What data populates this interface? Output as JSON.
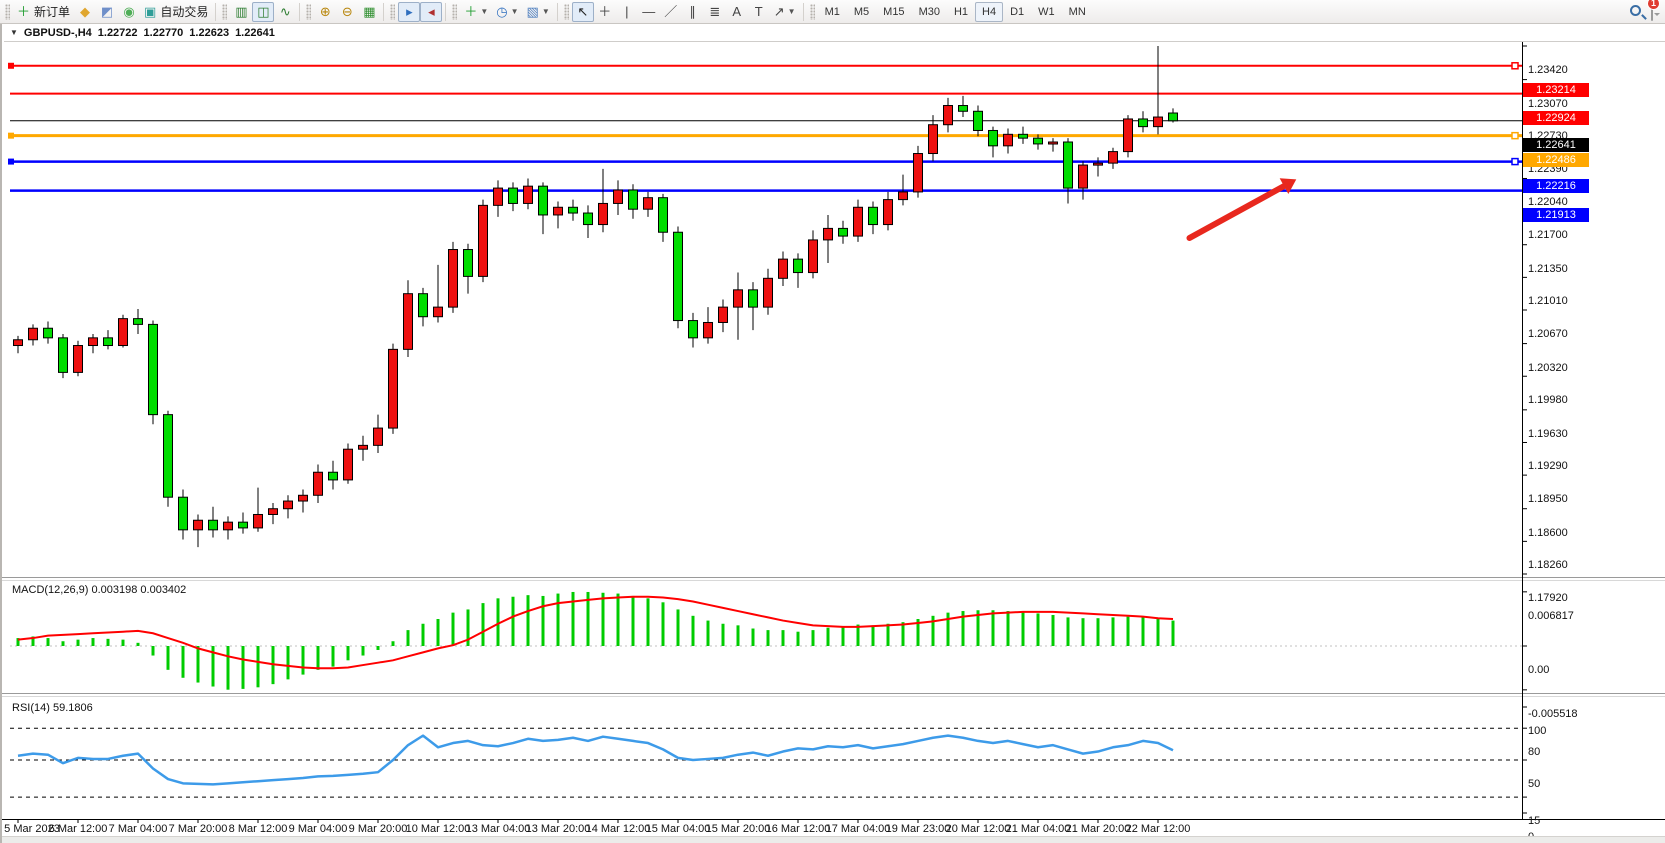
{
  "colors": {
    "bull": "#ee1111",
    "bear": "#00dd00",
    "candle_border": "#000000",
    "wick": "#000000",
    "line_red": "#ff0000",
    "line_orange": "#ffa800",
    "line_blue": "#0000ff",
    "line_black": "#000000",
    "macd_hist": "#00cc00",
    "macd_signal": "#ff0000",
    "rsi_line": "#3d9be9",
    "badge_black": "#000000",
    "arrow": "#e8281e",
    "axis_border": "#000000"
  },
  "toolbar": {
    "groups": [
      {
        "items": [
          {
            "name": "new-order-button",
            "icon": "new-order-icon",
            "glyph": "＋",
            "color": "#1f9d2f",
            "label": "新订单"
          },
          {
            "name": "open-account-button",
            "icon": "hat-icon",
            "glyph": "◆",
            "color": "#e0a62e"
          },
          {
            "name": "profile-button",
            "icon": "profile-icon",
            "glyph": "◩",
            "color": "#6f8fc9"
          },
          {
            "name": "signals-button",
            "icon": "signal-icon",
            "glyph": "◉",
            "color": "#4fae57"
          },
          {
            "name": "autotrading-button",
            "icon": "autotrade-icon",
            "glyph": "▣",
            "color": "#2f9e98",
            "label": "自动交易"
          }
        ]
      },
      {
        "items": [
          {
            "name": "bar-chart-button",
            "icon": "bars-icon",
            "glyph": "▥",
            "color": "#2e7d32"
          },
          {
            "name": "candlestick-button",
            "icon": "candles-icon",
            "glyph": "◫",
            "color": "#2e7d32",
            "active": true
          },
          {
            "name": "line-chart-button",
            "icon": "line-chart-icon",
            "glyph": "∿",
            "color": "#2e7d32"
          }
        ]
      },
      {
        "items": [
          {
            "name": "zoom-in-button",
            "icon": "zoom-in-icon",
            "glyph": "⊕",
            "color": "#b8860b"
          },
          {
            "name": "zoom-out-button",
            "icon": "zoom-out-icon",
            "glyph": "⊖",
            "color": "#b8860b"
          },
          {
            "name": "tile-windows-button",
            "icon": "tile-windows-icon",
            "glyph": "▦",
            "color": "#2f8f2f"
          }
        ]
      },
      {
        "items": [
          {
            "name": "auto-scroll-button",
            "icon": "auto-scroll-icon",
            "glyph": "▸",
            "color": "#2f6fbf",
            "active": true
          },
          {
            "name": "chart-shift-button",
            "icon": "chart-shift-icon",
            "glyph": "◂",
            "color": "#b03030",
            "active": true
          }
        ]
      },
      {
        "items": [
          {
            "name": "indicators-button",
            "icon": "add-indicator-icon",
            "glyph": "＋",
            "color": "#1f9d2f",
            "caret": true
          },
          {
            "name": "periods-button",
            "icon": "clock-icon",
            "glyph": "◷",
            "color": "#2f6fbf",
            "caret": true
          },
          {
            "name": "templates-button",
            "icon": "template-icon",
            "glyph": "▧",
            "color": "#4f7fbf",
            "caret": true
          }
        ]
      },
      {
        "items": [
          {
            "name": "cursor-button",
            "icon": "cursor-icon",
            "glyph": "↖",
            "color": "#222",
            "active": true
          },
          {
            "name": "crosshair-button",
            "icon": "crosshair-icon",
            "glyph": "＋",
            "color": "#444"
          },
          {
            "name": "vline-button",
            "icon": "vertical-line-icon",
            "glyph": "|",
            "color": "#444"
          },
          {
            "name": "hline-button",
            "icon": "horizontal-line-icon",
            "glyph": "—",
            "color": "#444"
          },
          {
            "name": "trendline-button",
            "icon": "trendline-icon",
            "glyph": "／",
            "color": "#444"
          },
          {
            "name": "channel-button",
            "icon": "channel-icon",
            "glyph": "∥",
            "color": "#444"
          },
          {
            "name": "fibonacci-button",
            "icon": "fibonacci-icon",
            "glyph": "≣",
            "color": "#444"
          },
          {
            "name": "text-button",
            "icon": "text-icon",
            "glyph": "A",
            "color": "#444"
          },
          {
            "name": "text-label-button",
            "icon": "text-label-icon",
            "glyph": "T",
            "color": "#444"
          },
          {
            "name": "arrows-button",
            "icon": "arrow-tools-icon",
            "glyph": "↗",
            "color": "#444",
            "caret": true
          }
        ]
      }
    ],
    "timeframes": [
      {
        "label": "M1"
      },
      {
        "label": "M5"
      },
      {
        "label": "M15"
      },
      {
        "label": "M30"
      },
      {
        "label": "H1"
      },
      {
        "label": "H4",
        "active": true
      },
      {
        "label": "D1"
      },
      {
        "label": "W1"
      },
      {
        "label": "MN"
      }
    ],
    "notification_count": "1"
  },
  "chart_header": {
    "collapse_glyph": "▼",
    "symbol_period": "GBPUSD-,H4",
    "open": "1.22722",
    "high": "1.22770",
    "low": "1.22623",
    "close": "1.22641"
  },
  "chart_data": {
    "type": "candlestick",
    "symbol": "GBPUSD-",
    "timeframe": "H4",
    "title": "GBPUSD-,H4 1.22722 1.22770 1.22623 1.22641",
    "price_axis_ticks": [
      "1.23420",
      "1.23070",
      "1.22730",
      "1.22390",
      "1.22040",
      "1.21700",
      "1.21350",
      "1.21010",
      "1.20670",
      "1.20320",
      "1.19980",
      "1.19630",
      "1.19290",
      "1.18950",
      "1.18600",
      "1.18260",
      "1.17920"
    ],
    "price_range": {
      "top": 1.2342,
      "bottom": 1.1792
    },
    "x_labels": [
      "5 Mar 2023",
      "6 Mar 12:00",
      "7 Mar 04:00",
      "7 Mar 20:00",
      "8 Mar 12:00",
      "9 Mar 04:00",
      "9 Mar 20:00",
      "10 Mar 12:00",
      "13 Mar 04:00",
      "13 Mar 20:00",
      "14 Mar 12:00",
      "15 Mar 04:00",
      "15 Mar 20:00",
      "16 Mar 12:00",
      "17 Mar 04:00",
      "19 Mar 23:00",
      "20 Mar 12:00",
      "21 Mar 04:00",
      "21 Mar 20:00",
      "22 Mar 12:00"
    ],
    "candles_per_label": 4,
    "current_price": "1.22641",
    "hlines": [
      {
        "price": 1.23214,
        "badge": "1.23214",
        "color_key": "line_red",
        "width": 2,
        "handles": true
      },
      {
        "price": 1.22924,
        "badge": "1.22924",
        "color_key": "line_red",
        "width": 2,
        "handles": false
      },
      {
        "price": 1.22641,
        "badge": "1.22641",
        "color_key": "line_black",
        "width": 1,
        "handles": false
      },
      {
        "price": 1.22486,
        "badge": "1.22486",
        "color_key": "line_orange",
        "width": 3,
        "handles": true
      },
      {
        "price": 1.22216,
        "badge": "1.22216",
        "color_key": "line_blue",
        "width": 2.5,
        "handles": true
      },
      {
        "price": 1.21913,
        "badge": "1.21913",
        "color_key": "line_blue",
        "width": 2.5,
        "handles": false
      }
    ],
    "candles": [
      [
        1.203,
        1.204,
        1.2022,
        1.2036
      ],
      [
        1.2036,
        1.2052,
        1.203,
        1.2048
      ],
      [
        1.2048,
        1.2055,
        1.2032,
        1.2038
      ],
      [
        1.2038,
        1.2042,
        1.1996,
        1.2002
      ],
      [
        1.2002,
        1.2035,
        1.1998,
        1.203
      ],
      [
        1.203,
        1.2042,
        1.2022,
        1.2038
      ],
      [
        1.2038,
        1.2046,
        1.2026,
        1.203
      ],
      [
        1.203,
        1.2062,
        1.2028,
        1.2058
      ],
      [
        1.2058,
        1.2068,
        1.2042,
        1.2052
      ],
      [
        1.2052,
        1.2056,
        1.1948,
        1.1958
      ],
      [
        1.1958,
        1.1962,
        1.1862,
        1.1872
      ],
      [
        1.1872,
        1.188,
        1.1828,
        1.1838
      ],
      [
        1.1838,
        1.1854,
        1.182,
        1.1848
      ],
      [
        1.1848,
        1.1862,
        1.183,
        1.1838
      ],
      [
        1.1838,
        1.1852,
        1.1828,
        1.1846
      ],
      [
        1.1846,
        1.1856,
        1.1834,
        1.184
      ],
      [
        1.184,
        1.1882,
        1.1836,
        1.1854
      ],
      [
        1.1854,
        1.1866,
        1.1844,
        1.186
      ],
      [
        1.186,
        1.1874,
        1.185,
        1.1868
      ],
      [
        1.1868,
        1.188,
        1.1856,
        1.1874
      ],
      [
        1.1874,
        1.1906,
        1.1866,
        1.1898
      ],
      [
        1.1898,
        1.191,
        1.188,
        1.189
      ],
      [
        1.189,
        1.1928,
        1.1886,
        1.1922
      ],
      [
        1.1922,
        1.1936,
        1.191,
        1.1926
      ],
      [
        1.1926,
        1.1958,
        1.1918,
        1.1944
      ],
      [
        1.1944,
        1.2032,
        1.1938,
        1.2026
      ],
      [
        1.2026,
        1.2098,
        1.2018,
        1.2084
      ],
      [
        1.2084,
        1.209,
        1.205,
        1.206
      ],
      [
        1.206,
        1.2114,
        1.2054,
        1.207
      ],
      [
        1.207,
        1.2138,
        1.2064,
        1.213
      ],
      [
        1.213,
        1.2136,
        1.2084,
        1.2102
      ],
      [
        1.2102,
        1.2182,
        1.2096,
        1.2176
      ],
      [
        1.2176,
        1.2202,
        1.2164,
        1.2194
      ],
      [
        1.2194,
        1.22,
        1.217,
        1.2178
      ],
      [
        1.2178,
        1.2204,
        1.2172,
        1.2196
      ],
      [
        1.2196,
        1.22,
        1.2146,
        1.2166
      ],
      [
        1.2166,
        1.218,
        1.2152,
        1.2174
      ],
      [
        1.2174,
        1.2182,
        1.216,
        1.2168
      ],
      [
        1.2168,
        1.2176,
        1.2142,
        1.2156
      ],
      [
        1.2156,
        1.2214,
        1.2148,
        1.2178
      ],
      [
        1.2178,
        1.2202,
        1.2166,
        1.2192
      ],
      [
        1.2192,
        1.2198,
        1.2162,
        1.2172
      ],
      [
        1.2172,
        1.219,
        1.2164,
        1.2184
      ],
      [
        1.2184,
        1.2188,
        1.2138,
        1.2148
      ],
      [
        1.2148,
        1.2154,
        1.2048,
        1.2056
      ],
      [
        1.2056,
        1.2064,
        1.2028,
        1.2038
      ],
      [
        1.2038,
        1.207,
        1.2032,
        1.2054
      ],
      [
        1.2054,
        1.2078,
        1.2044,
        1.207
      ],
      [
        1.207,
        1.2106,
        1.2036,
        1.2088
      ],
      [
        1.2088,
        1.2096,
        1.2046,
        1.207
      ],
      [
        1.207,
        1.211,
        1.2062,
        1.21
      ],
      [
        1.21,
        1.2128,
        1.2092,
        1.212
      ],
      [
        1.212,
        1.2126,
        1.209,
        1.2106
      ],
      [
        1.2106,
        1.215,
        1.21,
        1.214
      ],
      [
        1.214,
        1.2166,
        1.2116,
        1.2152
      ],
      [
        1.2152,
        1.216,
        1.2136,
        1.2144
      ],
      [
        1.2144,
        1.2182,
        1.2138,
        1.2174
      ],
      [
        1.2174,
        1.218,
        1.2146,
        1.2156
      ],
      [
        1.2156,
        1.219,
        1.215,
        1.2182
      ],
      [
        1.2182,
        1.2208,
        1.2176,
        1.219
      ],
      [
        1.219,
        1.2238,
        1.2184,
        1.223
      ],
      [
        1.223,
        1.227,
        1.2222,
        1.226
      ],
      [
        1.226,
        1.2288,
        1.2252,
        1.228
      ],
      [
        1.228,
        1.229,
        1.2268,
        1.2274
      ],
      [
        1.2274,
        1.228,
        1.2248,
        1.2254
      ],
      [
        1.2254,
        1.2258,
        1.2226,
        1.2238
      ],
      [
        1.2238,
        1.2256,
        1.223,
        1.225
      ],
      [
        1.225,
        1.2258,
        1.224,
        1.2246
      ],
      [
        1.2246,
        1.225,
        1.2234,
        1.224
      ],
      [
        1.224,
        1.2246,
        1.2232,
        1.2242
      ],
      [
        1.2242,
        1.2246,
        1.2178,
        1.2194
      ],
      [
        1.2194,
        1.2222,
        1.2182,
        1.2218
      ],
      [
        1.2218,
        1.2226,
        1.2206,
        1.222
      ],
      [
        1.222,
        1.2236,
        1.2214,
        1.2232
      ],
      [
        1.2232,
        1.227,
        1.2226,
        1.2266
      ],
      [
        1.2266,
        1.2274,
        1.2252,
        1.2258
      ],
      [
        1.2258,
        1.2342,
        1.225,
        1.2268
      ],
      [
        1.22722,
        1.2277,
        1.22623,
        1.22641
      ]
    ],
    "shift_marker_candle": 80,
    "arrow_annotation": {
      "from_candle": 78.1,
      "from_price": 1.2142,
      "to_candle": 84.4,
      "to_price": 1.2196
    },
    "indicators": {
      "macd": {
        "label": "MACD(12,26,9) 0.003198 0.003402",
        "params": "12,26,9",
        "last_main": "0.003198",
        "last_signal": "0.003402",
        "scale": [
          "0.006817",
          "0.00",
          "-0.005518"
        ],
        "scale_values": [
          0.006817,
          0.0,
          -0.005518
        ],
        "hist": [
          0.001,
          0.0012,
          0.001,
          0.0006,
          0.0008,
          0.001,
          0.0009,
          0.0008,
          0.0004,
          -0.0012,
          -0.003,
          -0.004,
          -0.0046,
          -0.0051,
          -0.0055,
          -0.0054,
          -0.0052,
          -0.0048,
          -0.0042,
          -0.0036,
          -0.003,
          -0.0026,
          -0.0018,
          -0.0012,
          -0.0005,
          0.0006,
          0.002,
          0.0028,
          0.0034,
          0.0042,
          0.0046,
          0.0054,
          0.006,
          0.0062,
          0.0064,
          0.0063,
          0.0066,
          0.0068,
          0.0068,
          0.0067,
          0.0066,
          0.0063,
          0.006,
          0.0055,
          0.0046,
          0.0038,
          0.0032,
          0.0028,
          0.0026,
          0.0022,
          0.002,
          0.002,
          0.0018,
          0.002,
          0.0023,
          0.0024,
          0.0027,
          0.0026,
          0.0028,
          0.003,
          0.0034,
          0.0038,
          0.0042,
          0.0044,
          0.0045,
          0.0045,
          0.0044,
          0.0043,
          0.0041,
          0.0039,
          0.0036,
          0.0035,
          0.0035,
          0.0036,
          0.0037,
          0.0036,
          0.0035,
          0.0032
        ],
        "signal": [
          0.0008,
          0.001,
          0.0013,
          0.0014,
          0.0015,
          0.0016,
          0.0017,
          0.0018,
          0.0019,
          0.0016,
          0.001,
          0.0004,
          -0.0003,
          -0.0008,
          -0.0013,
          -0.0017,
          -0.002,
          -0.0023,
          -0.0025,
          -0.0027,
          -0.0028,
          -0.0028,
          -0.0027,
          -0.0024,
          -0.0021,
          -0.0018,
          -0.0013,
          -0.0008,
          -0.0003,
          0.0001,
          0.0008,
          0.0018,
          0.0028,
          0.0037,
          0.0044,
          0.005,
          0.0054,
          0.0056,
          0.0058,
          0.006,
          0.0061,
          0.0062,
          0.0062,
          0.0061,
          0.0059,
          0.0056,
          0.0052,
          0.0048,
          0.0044,
          0.004,
          0.0036,
          0.0032,
          0.0029,
          0.0026,
          0.0025,
          0.0024,
          0.0024,
          0.0025,
          0.0026,
          0.0027,
          0.0029,
          0.0031,
          0.0034,
          0.0037,
          0.0039,
          0.0041,
          0.0042,
          0.0043,
          0.0043,
          0.0043,
          0.0042,
          0.0041,
          0.004,
          0.0039,
          0.0038,
          0.0037,
          0.0035,
          0.0034
        ]
      },
      "rsi": {
        "label": "RSI(14) 59.1806",
        "period": "14",
        "last": "59.1806",
        "levels": [
          "100",
          "80",
          "50",
          "15",
          "0"
        ],
        "level_values": [
          100,
          80,
          50,
          15,
          0
        ],
        "dashed_levels": [
          80,
          50,
          15
        ],
        "values": [
          54,
          56,
          55,
          47,
          52,
          51,
          51,
          54,
          56,
          42,
          32,
          28,
          27.5,
          27,
          28,
          29,
          30,
          31,
          32,
          33,
          34.5,
          35,
          36,
          37,
          38.5,
          50,
          64,
          73,
          62,
          66,
          68,
          64,
          63,
          66,
          70,
          68,
          69,
          71,
          68,
          72,
          70,
          68,
          66,
          60,
          52,
          50,
          51,
          52,
          55,
          57,
          54,
          58,
          61,
          60,
          63,
          62,
          64,
          61,
          63,
          65,
          68,
          71,
          73,
          71,
          68,
          66,
          68,
          65,
          62,
          64,
          60,
          56,
          58,
          62,
          64,
          68,
          66,
          59.18
        ]
      }
    }
  }
}
